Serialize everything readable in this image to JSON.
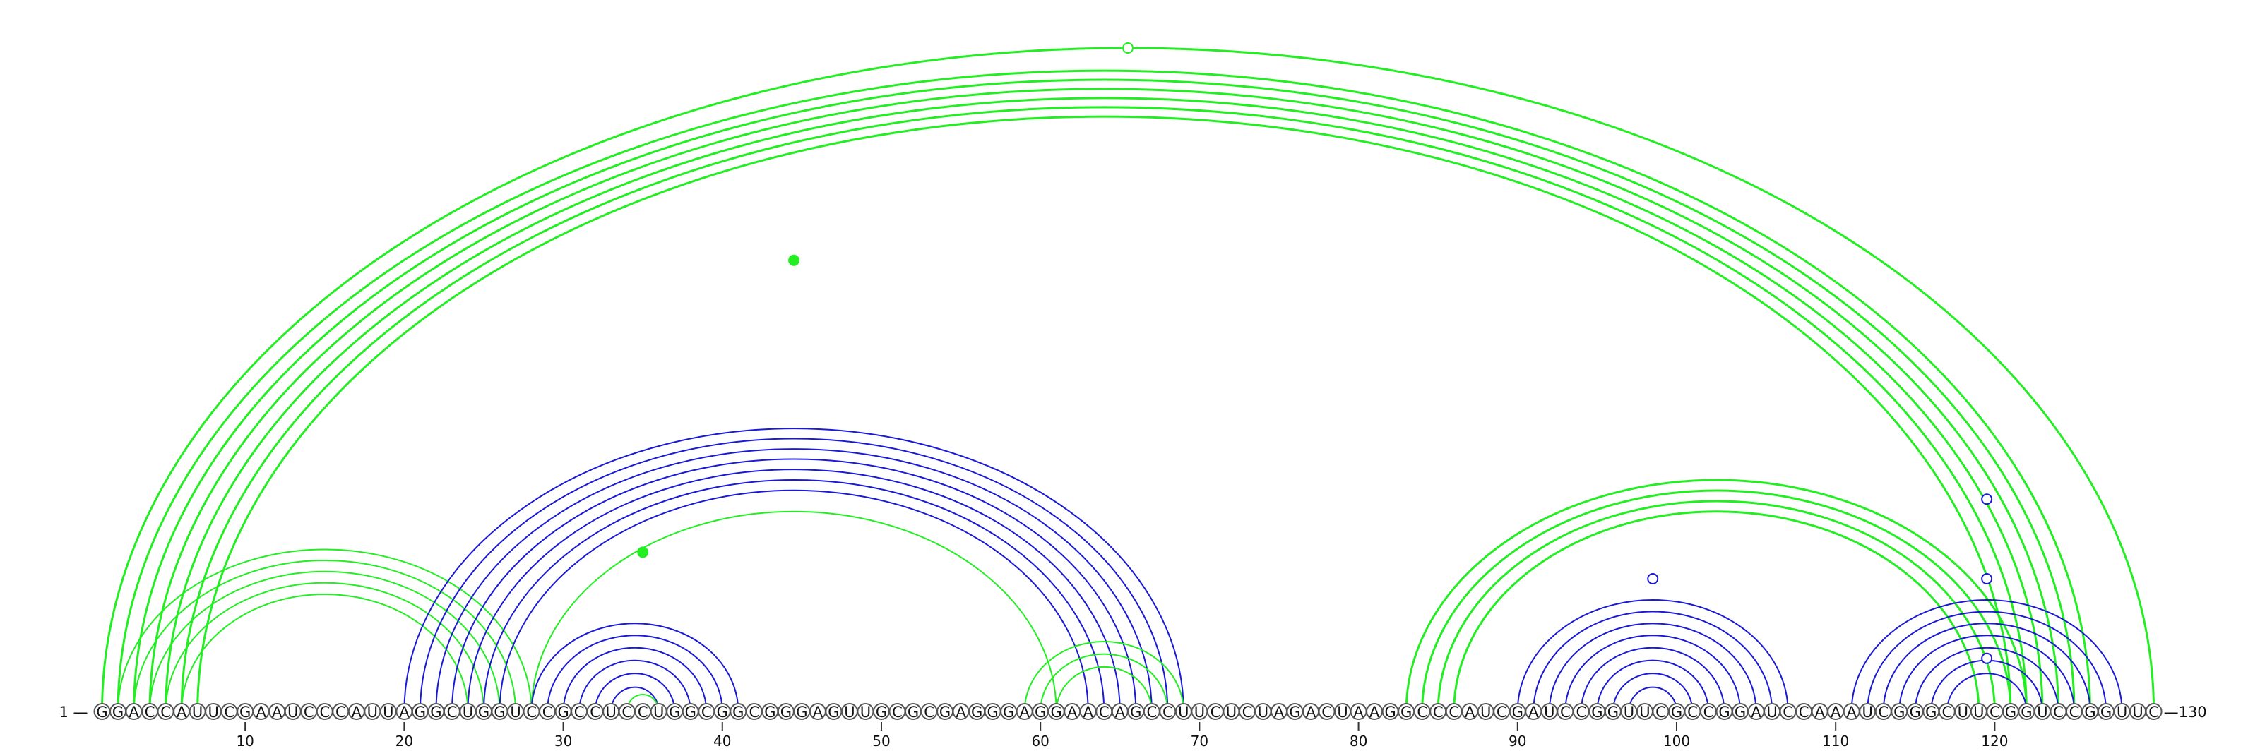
{
  "sequence": "GGACCAUUCGAAUCCCAUUAGGCUGGUCCGCCUCCUGGCGGCGGGAGUUGCGCGAGGGAGGAACAGCCUUCUCUAGACUAAGGCCCAUCGAUCCGGUUCGCCGGAUCCAAAUCGGGCUUCGGUCCGGUUC",
  "start_label": "1 —",
  "end_label": "—130",
  "tick_numbers": [
    10,
    20,
    30,
    40,
    50,
    60,
    70,
    80,
    90,
    100,
    110,
    120
  ],
  "colors": {
    "green_pairs": "#22ee22",
    "blue_pairs": "#1a1ad6",
    "backbone": "#555555"
  },
  "arc_groups": [
    {
      "color": "green",
      "stroke": 3,
      "pairs": [
        [
          1,
          130
        ],
        [
          2,
          126
        ],
        [
          3,
          125
        ],
        [
          4,
          124
        ],
        [
          5,
          123
        ],
        [
          6,
          122
        ],
        [
          7,
          121
        ]
      ]
    },
    {
      "color": "green",
      "stroke": 2,
      "pairs": [
        [
          2,
          28
        ],
        [
          3,
          27
        ],
        [
          4,
          26
        ],
        [
          5,
          25
        ],
        [
          6,
          24
        ]
      ]
    },
    {
      "color": "blue",
      "stroke": 2,
      "pairs": [
        [
          20,
          69
        ],
        [
          21,
          68
        ],
        [
          22,
          67
        ],
        [
          23,
          66
        ],
        [
          24,
          65
        ],
        [
          25,
          64
        ],
        [
          26,
          63
        ]
      ]
    },
    {
      "color": "green",
      "stroke": 2,
      "pairs": [
        [
          28,
          61
        ]
      ]
    },
    {
      "color": "blue",
      "stroke": 2,
      "pairs": [
        [
          28,
          41
        ],
        [
          29,
          40
        ],
        [
          30,
          39
        ],
        [
          31,
          38
        ],
        [
          32,
          37
        ],
        [
          33,
          36
        ]
      ]
    },
    {
      "color": "green",
      "stroke": 2,
      "pairs": [
        [
          34,
          36
        ]
      ]
    },
    {
      "color": "green",
      "stroke": 2,
      "pairs": [
        [
          59,
          69
        ],
        [
          60,
          68
        ],
        [
          61,
          67
        ]
      ]
    },
    {
      "color": "green",
      "stroke": 3,
      "pairs": [
        [
          83,
          122
        ],
        [
          84,
          121
        ],
        [
          85,
          120
        ],
        [
          86,
          119
        ]
      ]
    },
    {
      "color": "blue",
      "stroke": 2,
      "pairs": [
        [
          90,
          107
        ],
        [
          91,
          106
        ],
        [
          92,
          105
        ],
        [
          93,
          104
        ],
        [
          94,
          103
        ],
        [
          95,
          102
        ],
        [
          96,
          101
        ],
        [
          97,
          100
        ]
      ]
    },
    {
      "color": "blue",
      "stroke": 2,
      "pairs": [
        [
          111,
          128
        ],
        [
          112,
          127
        ],
        [
          113,
          126
        ],
        [
          114,
          125
        ],
        [
          115,
          124
        ],
        [
          116,
          123
        ],
        [
          117,
          122
        ]
      ]
    }
  ],
  "markers": [
    {
      "center": 65.5,
      "height_frac": 1.0,
      "filled": false,
      "color": "green"
    },
    {
      "center": 44.5,
      "height_frac": 0.68,
      "filled": true,
      "color": "green"
    },
    {
      "center": 35.0,
      "height_frac": 0.24,
      "filled": true,
      "color": "green"
    },
    {
      "center": 98.5,
      "height_frac": 0.2,
      "filled": false,
      "color": "blue"
    },
    {
      "center": 119.5,
      "height_frac": 0.32,
      "filled": false,
      "color": "blue"
    },
    {
      "center": 119.5,
      "height_frac": 0.2,
      "filled": false,
      "color": "blue"
    },
    {
      "center": 119.5,
      "height_frac": 0.08,
      "filled": false,
      "color": "blue"
    }
  ]
}
